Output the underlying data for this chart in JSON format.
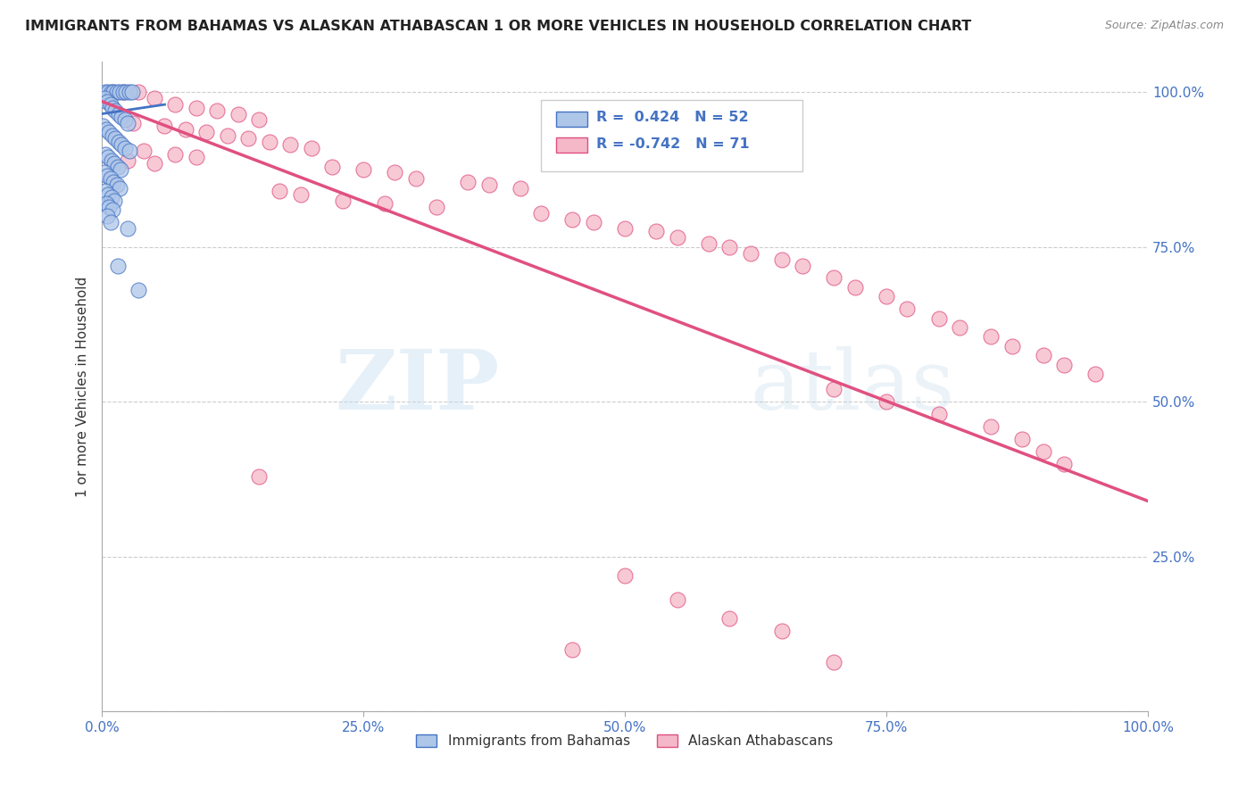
{
  "title": "IMMIGRANTS FROM BAHAMAS VS ALASKAN ATHABASCAN 1 OR MORE VEHICLES IN HOUSEHOLD CORRELATION CHART",
  "source": "Source: ZipAtlas.com",
  "ylabel": "1 or more Vehicles in Household",
  "blue_label": "Immigrants from Bahamas",
  "pink_label": "Alaskan Athabascans",
  "blue_R": 0.424,
  "blue_N": 52,
  "pink_R": -0.742,
  "pink_N": 71,
  "blue_color": "#aec6e8",
  "pink_color": "#f5b8c8",
  "blue_line_color": "#4472c4",
  "pink_line_color": "#e05080",
  "watermark_zip": "ZIP",
  "watermark_atlas": "atlas",
  "blue_trend": [
    0.0,
    1.0,
    0.96,
    1.0
  ],
  "pink_trend": [
    0.0,
    1.0,
    0.985,
    0.34
  ],
  "blue_points": [
    [
      0.3,
      100.0
    ],
    [
      0.6,
      100.0
    ],
    [
      0.9,
      100.0
    ],
    [
      1.1,
      100.0
    ],
    [
      1.4,
      100.0
    ],
    [
      1.7,
      100.0
    ],
    [
      2.0,
      100.0
    ],
    [
      2.3,
      100.0
    ],
    [
      2.6,
      100.0
    ],
    [
      2.9,
      100.0
    ],
    [
      0.2,
      99.0
    ],
    [
      0.5,
      98.5
    ],
    [
      0.8,
      98.0
    ],
    [
      1.0,
      97.5
    ],
    [
      1.3,
      97.0
    ],
    [
      1.6,
      96.5
    ],
    [
      1.9,
      96.0
    ],
    [
      2.2,
      95.5
    ],
    [
      2.5,
      95.0
    ],
    [
      0.1,
      94.5
    ],
    [
      0.4,
      94.0
    ],
    [
      0.7,
      93.5
    ],
    [
      1.0,
      93.0
    ],
    [
      1.3,
      92.5
    ],
    [
      1.6,
      92.0
    ],
    [
      1.9,
      91.5
    ],
    [
      2.2,
      91.0
    ],
    [
      2.6,
      90.5
    ],
    [
      0.3,
      90.0
    ],
    [
      0.6,
      89.5
    ],
    [
      0.9,
      89.0
    ],
    [
      1.2,
      88.5
    ],
    [
      1.5,
      88.0
    ],
    [
      1.8,
      87.5
    ],
    [
      0.2,
      87.0
    ],
    [
      0.5,
      86.5
    ],
    [
      0.8,
      86.0
    ],
    [
      1.1,
      85.5
    ],
    [
      1.4,
      85.0
    ],
    [
      1.7,
      84.5
    ],
    [
      0.3,
      84.0
    ],
    [
      0.6,
      83.5
    ],
    [
      0.9,
      83.0
    ],
    [
      1.2,
      82.5
    ],
    [
      0.4,
      82.0
    ],
    [
      0.7,
      81.5
    ],
    [
      1.0,
      81.0
    ],
    [
      0.5,
      80.0
    ],
    [
      0.8,
      79.0
    ],
    [
      2.5,
      78.0
    ],
    [
      1.5,
      72.0
    ],
    [
      3.5,
      68.0
    ]
  ],
  "pink_points": [
    [
      1.0,
      100.0
    ],
    [
      2.0,
      100.0
    ],
    [
      3.5,
      100.0
    ],
    [
      5.0,
      99.0
    ],
    [
      7.0,
      98.0
    ],
    [
      9.0,
      97.5
    ],
    [
      11.0,
      97.0
    ],
    [
      13.0,
      96.5
    ],
    [
      15.0,
      95.5
    ],
    [
      3.0,
      95.0
    ],
    [
      6.0,
      94.5
    ],
    [
      8.0,
      94.0
    ],
    [
      10.0,
      93.5
    ],
    [
      12.0,
      93.0
    ],
    [
      14.0,
      92.5
    ],
    [
      16.0,
      92.0
    ],
    [
      18.0,
      91.5
    ],
    [
      20.0,
      91.0
    ],
    [
      4.0,
      90.5
    ],
    [
      7.0,
      90.0
    ],
    [
      9.0,
      89.5
    ],
    [
      2.5,
      89.0
    ],
    [
      5.0,
      88.5
    ],
    [
      22.0,
      88.0
    ],
    [
      25.0,
      87.5
    ],
    [
      28.0,
      87.0
    ],
    [
      30.0,
      86.0
    ],
    [
      35.0,
      85.5
    ],
    [
      37.0,
      85.0
    ],
    [
      40.0,
      84.5
    ],
    [
      17.0,
      84.0
    ],
    [
      19.0,
      83.5
    ],
    [
      23.0,
      82.5
    ],
    [
      27.0,
      82.0
    ],
    [
      32.0,
      81.5
    ],
    [
      42.0,
      80.5
    ],
    [
      45.0,
      79.5
    ],
    [
      47.0,
      79.0
    ],
    [
      50.0,
      78.0
    ],
    [
      53.0,
      77.5
    ],
    [
      55.0,
      76.5
    ],
    [
      58.0,
      75.5
    ],
    [
      60.0,
      75.0
    ],
    [
      62.0,
      74.0
    ],
    [
      65.0,
      73.0
    ],
    [
      67.0,
      72.0
    ],
    [
      70.0,
      70.0
    ],
    [
      72.0,
      68.5
    ],
    [
      75.0,
      67.0
    ],
    [
      77.0,
      65.0
    ],
    [
      80.0,
      63.5
    ],
    [
      82.0,
      62.0
    ],
    [
      85.0,
      60.5
    ],
    [
      87.0,
      59.0
    ],
    [
      90.0,
      57.5
    ],
    [
      92.0,
      56.0
    ],
    [
      95.0,
      54.5
    ],
    [
      70.0,
      52.0
    ],
    [
      75.0,
      50.0
    ],
    [
      80.0,
      48.0
    ],
    [
      85.0,
      46.0
    ],
    [
      88.0,
      44.0
    ],
    [
      90.0,
      42.0
    ],
    [
      92.0,
      40.0
    ],
    [
      15.0,
      38.0
    ],
    [
      50.0,
      22.0
    ],
    [
      55.0,
      18.0
    ],
    [
      60.0,
      15.0
    ],
    [
      65.0,
      13.0
    ],
    [
      45.0,
      10.0
    ],
    [
      70.0,
      8.0
    ]
  ]
}
